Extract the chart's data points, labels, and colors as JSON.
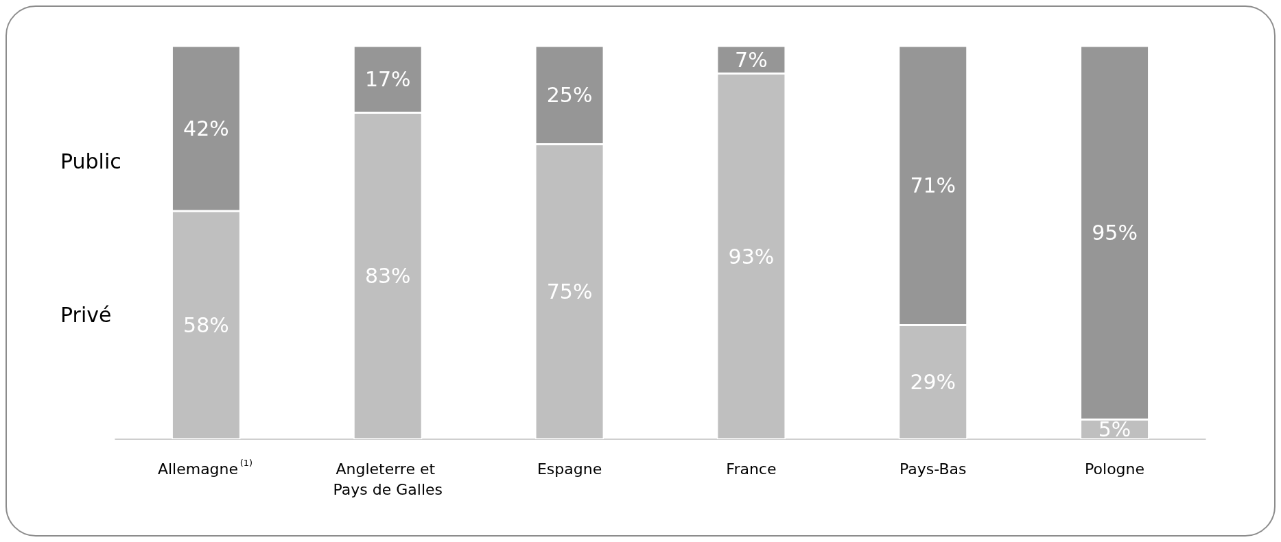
{
  "chart_data": {
    "type": "bar",
    "stacked": true,
    "categories": [
      "Allemagne$^{(1)}$",
      "Angleterre et Pays de Galles",
      "Espagne",
      "France",
      "Pays-Bas",
      "Pologne"
    ],
    "ylim": [
      0,
      100
    ],
    "series": [
      {
        "name": "Privé",
        "color": "#bfbfbf",
        "values": [
          58,
          83,
          75,
          93,
          29,
          5
        ],
        "value_labels": [
          "58%",
          "83%",
          "75%",
          "93%",
          "29%",
          "5%"
        ]
      },
      {
        "name": "Public",
        "color": "#969696",
        "values": [
          42,
          17,
          25,
          7,
          71,
          95
        ],
        "value_labels": [
          "42%",
          "17%",
          "25%",
          "7%",
          "71%",
          "95%"
        ]
      }
    ]
  }
}
